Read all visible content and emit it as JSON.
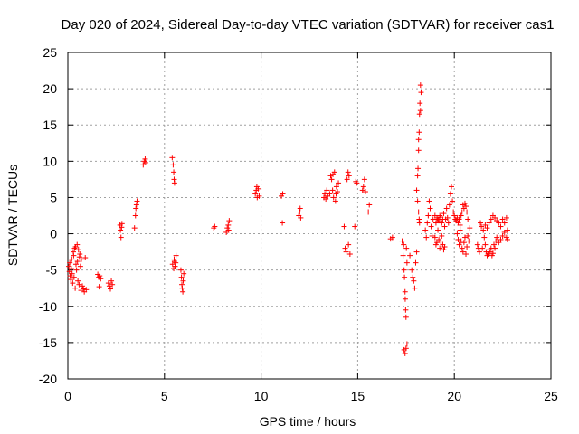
{
  "chart_data": {
    "type": "scatter",
    "title": "Day 020 of 2024, Sidereal Day-to-day VTEC variation (SDTVAR) for receiver cas1",
    "xlabel": "GPS time / hours",
    "ylabel": "SDTVAR / TECUs",
    "xlim": [
      0,
      25
    ],
    "ylim": [
      -20,
      25
    ],
    "xticks": [
      0,
      5,
      10,
      15,
      20,
      25
    ],
    "yticks": [
      -20,
      -15,
      -10,
      -5,
      0,
      5,
      10,
      15,
      20,
      25
    ],
    "grid": true,
    "marker": "plus",
    "color": "#ff0000",
    "series": [
      {
        "name": "SDTVAR",
        "points": [
          [
            0.05,
            -4.5
          ],
          [
            0.08,
            -5.2
          ],
          [
            0.1,
            -4.0
          ],
          [
            0.12,
            -5.8
          ],
          [
            0.15,
            -6.3
          ],
          [
            0.18,
            -4.8
          ],
          [
            0.2,
            -3.5
          ],
          [
            0.22,
            -5.5
          ],
          [
            0.25,
            -6.8
          ],
          [
            0.28,
            -2.5
          ],
          [
            0.3,
            -3.0
          ],
          [
            0.32,
            -6.0
          ],
          [
            0.35,
            -2.0
          ],
          [
            0.38,
            -7.5
          ],
          [
            0.4,
            -1.8
          ],
          [
            0.42,
            -4.2
          ],
          [
            0.45,
            -5.0
          ],
          [
            0.48,
            -1.5
          ],
          [
            0.5,
            -3.8
          ],
          [
            0.52,
            -6.5
          ],
          [
            0.55,
            -2.2
          ],
          [
            0.58,
            -7.0
          ],
          [
            0.6,
            -3.2
          ],
          [
            0.62,
            -2.8
          ],
          [
            0.65,
            -4.5
          ],
          [
            0.68,
            -7.8
          ],
          [
            0.7,
            -3.5
          ],
          [
            0.75,
            -7.2
          ],
          [
            0.8,
            -7.6
          ],
          [
            0.85,
            -8.0
          ],
          [
            0.9,
            -3.3
          ],
          [
            0.95,
            -7.7
          ],
          [
            1.55,
            -5.6
          ],
          [
            1.6,
            -6.0
          ],
          [
            1.62,
            -7.3
          ],
          [
            1.65,
            -5.8
          ],
          [
            1.7,
            -6.2
          ],
          [
            2.1,
            -6.8
          ],
          [
            2.15,
            -7.2
          ],
          [
            2.2,
            -7.6
          ],
          [
            2.25,
            -6.5
          ],
          [
            2.3,
            -7.0
          ],
          [
            2.7,
            1.2
          ],
          [
            2.72,
            0.5
          ],
          [
            2.75,
            -0.5
          ],
          [
            2.78,
            0.9
          ],
          [
            2.8,
            1.4
          ],
          [
            3.45,
            0.8
          ],
          [
            3.5,
            2.5
          ],
          [
            3.52,
            3.5
          ],
          [
            3.55,
            4.0
          ],
          [
            3.58,
            4.5
          ],
          [
            3.9,
            9.5
          ],
          [
            3.95,
            10.0
          ],
          [
            4.0,
            10.3
          ],
          [
            4.02,
            9.8
          ],
          [
            5.4,
            10.5
          ],
          [
            5.45,
            9.5
          ],
          [
            5.48,
            8.5
          ],
          [
            5.5,
            7.5
          ],
          [
            5.52,
            7.0
          ],
          [
            5.5,
            -3.5
          ],
          [
            5.55,
            -4.5
          ],
          [
            5.6,
            -3.0
          ],
          [
            5.42,
            -4.2
          ],
          [
            5.48,
            -4.8
          ],
          [
            5.52,
            -3.8
          ],
          [
            5.58,
            -4.0
          ],
          [
            5.85,
            -5.0
          ],
          [
            5.88,
            -6.0
          ],
          [
            5.9,
            -7.0
          ],
          [
            5.92,
            -7.5
          ],
          [
            5.95,
            -8.0
          ],
          [
            6.0,
            -5.5
          ],
          [
            5.97,
            -6.5
          ],
          [
            7.55,
            0.8
          ],
          [
            7.6,
            1.0
          ],
          [
            8.2,
            0.2
          ],
          [
            8.25,
            0.8
          ],
          [
            8.3,
            1.2
          ],
          [
            8.35,
            1.8
          ],
          [
            8.32,
            0.5
          ],
          [
            9.7,
            5.5
          ],
          [
            9.75,
            6.0
          ],
          [
            9.8,
            5.0
          ],
          [
            9.85,
            6.2
          ],
          [
            9.9,
            5.2
          ],
          [
            9.78,
            6.5
          ],
          [
            11.05,
            5.2
          ],
          [
            11.1,
            1.5
          ],
          [
            11.12,
            5.5
          ],
          [
            11.95,
            2.5
          ],
          [
            12.0,
            3.0
          ],
          [
            12.02,
            3.5
          ],
          [
            12.05,
            2.2
          ],
          [
            13.25,
            5.0
          ],
          [
            13.3,
            5.5
          ],
          [
            13.35,
            4.8
          ],
          [
            13.4,
            6.0
          ],
          [
            13.45,
            5.2
          ],
          [
            13.55,
            5.5
          ],
          [
            13.6,
            8.0
          ],
          [
            13.65,
            7.5
          ],
          [
            13.7,
            6.0
          ],
          [
            13.75,
            5.0
          ],
          [
            13.8,
            8.5
          ],
          [
            13.85,
            4.5
          ],
          [
            13.9,
            6.5
          ],
          [
            13.95,
            5.8
          ],
          [
            14.0,
            7.0
          ],
          [
            13.72,
            8.2
          ],
          [
            13.88,
            5.5
          ],
          [
            14.3,
            1.0
          ],
          [
            14.35,
            -2.0
          ],
          [
            14.4,
            -2.5
          ],
          [
            14.45,
            7.5
          ],
          [
            14.5,
            8.5
          ],
          [
            14.55,
            8.0
          ],
          [
            14.6,
            -2.8
          ],
          [
            14.52,
            -1.5
          ],
          [
            14.85,
            1.0
          ],
          [
            14.9,
            7.2
          ],
          [
            14.95,
            7.0
          ],
          [
            15.25,
            6.0
          ],
          [
            15.3,
            6.5
          ],
          [
            15.35,
            7.5
          ],
          [
            15.4,
            5.8
          ],
          [
            15.55,
            3.0
          ],
          [
            15.6,
            4.0
          ],
          [
            16.7,
            -0.7
          ],
          [
            16.8,
            -0.5
          ],
          [
            17.3,
            -1.0
          ],
          [
            17.35,
            -3.0
          ],
          [
            17.4,
            -5.0
          ],
          [
            17.45,
            -8.0
          ],
          [
            17.48,
            -10.5
          ],
          [
            17.5,
            -11.5
          ],
          [
            17.52,
            -2.0
          ],
          [
            17.55,
            -4.0
          ],
          [
            17.38,
            -1.5
          ],
          [
            17.42,
            -6.0
          ],
          [
            17.46,
            -9.0
          ],
          [
            17.4,
            -16.0
          ],
          [
            17.45,
            -16.5
          ],
          [
            17.5,
            -15.8
          ],
          [
            17.55,
            -15.2
          ],
          [
            17.7,
            -3.0
          ],
          [
            17.8,
            -5.0
          ],
          [
            17.9,
            -6.5
          ],
          [
            17.95,
            -7.5
          ],
          [
            18.0,
            -4.0
          ],
          [
            18.05,
            -2.5
          ],
          [
            17.85,
            -6.0
          ],
          [
            18.1,
            8.0
          ],
          [
            18.12,
            9.0
          ],
          [
            18.15,
            11.5
          ],
          [
            18.18,
            14.0
          ],
          [
            18.2,
            16.5
          ],
          [
            18.22,
            18.0
          ],
          [
            18.25,
            20.5
          ],
          [
            18.28,
            19.5
          ],
          [
            18.15,
            13.0
          ],
          [
            18.25,
            17.0
          ],
          [
            18.05,
            6.0
          ],
          [
            18.1,
            4.5
          ],
          [
            18.15,
            3.0
          ],
          [
            18.18,
            2.0
          ],
          [
            18.2,
            1.5
          ],
          [
            18.5,
            0.5
          ],
          [
            18.55,
            -0.5
          ],
          [
            18.6,
            1.5
          ],
          [
            18.65,
            2.5
          ],
          [
            18.7,
            4.5
          ],
          [
            18.75,
            3.5
          ],
          [
            18.8,
            1.0
          ],
          [
            18.85,
            -0.3
          ],
          [
            18.9,
            2.0
          ],
          [
            19.0,
            2.5
          ],
          [
            19.05,
            1.5
          ],
          [
            19.1,
            2.2
          ],
          [
            19.15,
            2.0
          ],
          [
            19.2,
            1.8
          ],
          [
            19.25,
            2.5
          ],
          [
            19.3,
            2.3
          ],
          [
            19.35,
            1.5
          ],
          [
            19.4,
            2.0
          ],
          [
            19.45,
            2.8
          ],
          [
            19.5,
            1.0
          ],
          [
            19.55,
            2.0
          ],
          [
            19.6,
            3.5
          ],
          [
            19.65,
            2.2
          ],
          [
            19.7,
            1.5
          ],
          [
            19.75,
            4.0
          ],
          [
            19.0,
            -0.5
          ],
          [
            19.05,
            -1.5
          ],
          [
            19.1,
            -1.2
          ],
          [
            19.15,
            0.5
          ],
          [
            19.2,
            -0.8
          ],
          [
            19.25,
            -2.0
          ],
          [
            19.3,
            -1.0
          ],
          [
            19.35,
            -0.3
          ],
          [
            19.4,
            -1.5
          ],
          [
            19.45,
            -2.2
          ],
          [
            19.5,
            -1.8
          ],
          [
            19.8,
            5.5
          ],
          [
            19.85,
            6.5
          ],
          [
            19.9,
            4.5
          ],
          [
            19.95,
            3.0
          ],
          [
            20.0,
            2.5
          ],
          [
            20.05,
            2.0
          ],
          [
            20.1,
            1.8
          ],
          [
            20.15,
            2.2
          ],
          [
            20.2,
            1.5
          ],
          [
            20.25,
            2.0
          ],
          [
            20.3,
            1.2
          ],
          [
            20.35,
            2.5
          ],
          [
            20.4,
            3.0
          ],
          [
            20.45,
            4.0
          ],
          [
            20.5,
            3.5
          ],
          [
            20.55,
            4.2
          ],
          [
            20.6,
            3.8
          ],
          [
            20.65,
            3.0
          ],
          [
            20.7,
            2.0
          ],
          [
            20.15,
            0.0
          ],
          [
            20.2,
            -0.8
          ],
          [
            20.25,
            -1.5
          ],
          [
            20.3,
            0.5
          ],
          [
            20.35,
            -1.0
          ],
          [
            20.4,
            -2.0
          ],
          [
            20.45,
            -2.5
          ],
          [
            20.5,
            -1.2
          ],
          [
            20.55,
            -0.5
          ],
          [
            20.6,
            -2.8
          ],
          [
            20.65,
            -1.8
          ],
          [
            20.7,
            -0.3
          ],
          [
            20.75,
            -1.0
          ],
          [
            20.8,
            0.8
          ],
          [
            21.2,
            -1.5
          ],
          [
            21.25,
            -2.0
          ],
          [
            21.3,
            -2.5
          ],
          [
            21.35,
            1.5
          ],
          [
            21.4,
            1.0
          ],
          [
            21.45,
            -2.0
          ],
          [
            21.5,
            0.5
          ],
          [
            21.55,
            -0.5
          ],
          [
            21.6,
            -1.5
          ],
          [
            21.65,
            -2.5
          ],
          [
            21.7,
            -3.0
          ],
          [
            21.75,
            -2.8
          ],
          [
            21.8,
            -2.2
          ],
          [
            21.85,
            -2.5
          ],
          [
            21.9,
            -2.0
          ],
          [
            21.95,
            -3.0
          ],
          [
            22.0,
            -2.7
          ],
          [
            21.6,
            1.2
          ],
          [
            21.7,
            0.8
          ],
          [
            21.8,
            1.5
          ],
          [
            21.9,
            2.0
          ],
          [
            22.0,
            2.5
          ],
          [
            22.1,
            2.2
          ],
          [
            22.2,
            1.8
          ],
          [
            22.3,
            1.5
          ],
          [
            22.4,
            1.0
          ],
          [
            22.5,
            2.0
          ],
          [
            22.6,
            1.5
          ],
          [
            22.7,
            2.2
          ],
          [
            22.75,
            0.5
          ],
          [
            22.05,
            -1.5
          ],
          [
            22.1,
            -2.0
          ],
          [
            22.15,
            -1.0
          ],
          [
            22.2,
            -0.5
          ],
          [
            22.3,
            -1.2
          ],
          [
            22.4,
            -0.8
          ],
          [
            22.5,
            -0.3
          ],
          [
            22.6,
            0.2
          ],
          [
            22.7,
            -0.5
          ],
          [
            22.75,
            -0.8
          ]
        ]
      }
    ]
  }
}
